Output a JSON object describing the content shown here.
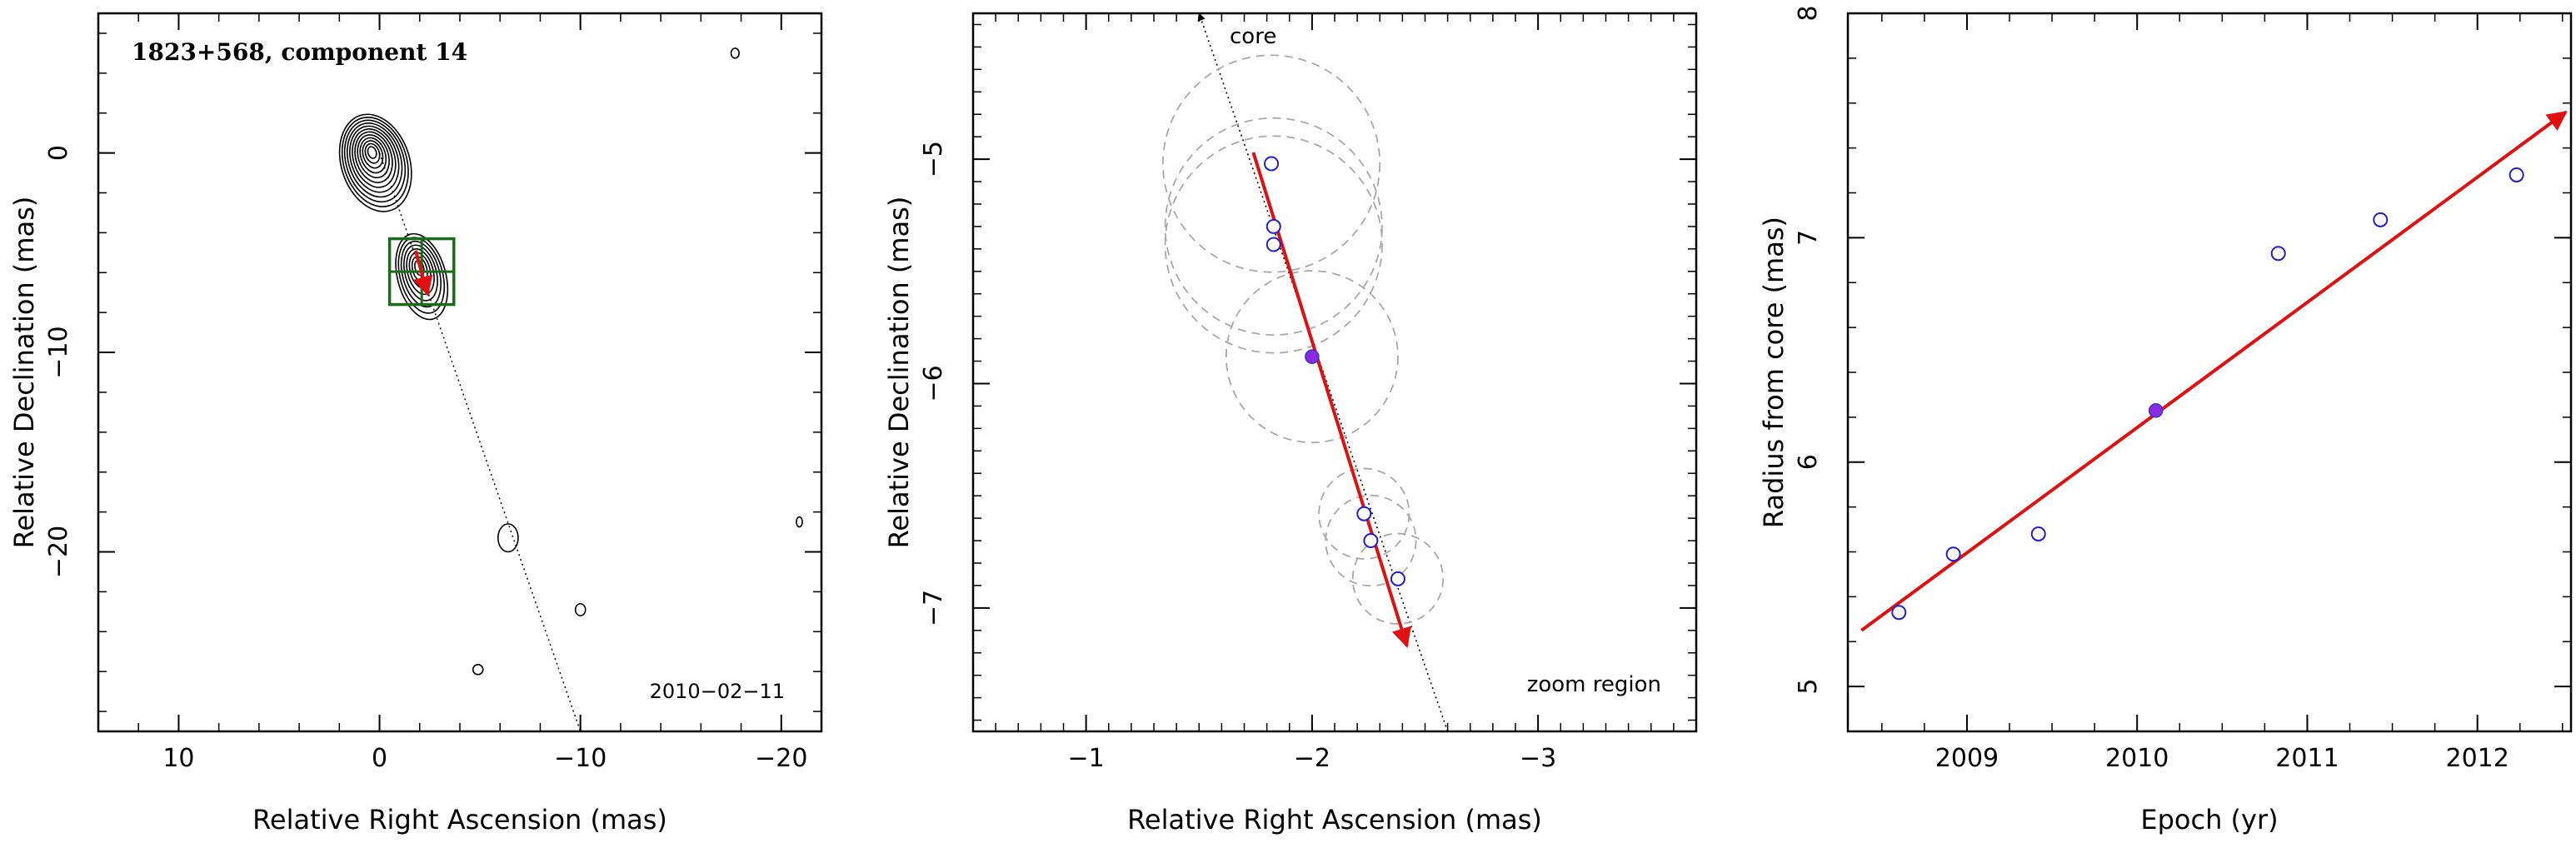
{
  "chart_data": [
    {
      "type": "contour",
      "title": "1823+568, component 14",
      "annotation": "2010−02−11",
      "xlabel": "Relative Right Ascension (mas)",
      "ylabel": "Relative Declination (mas)",
      "xlim": [
        14,
        -22
      ],
      "ylim": [
        -29,
        7
      ],
      "xticks": [
        10,
        0,
        -10,
        -20
      ],
      "yticks": [
        0,
        -10,
        -20
      ],
      "jet_axis": {
        "from": [
          0,
          0
        ],
        "to": [
          -10,
          -29
        ]
      },
      "contour_blobs": [
        {
          "label": "core",
          "x": 0.2,
          "y": -0.5,
          "rx": 1.7,
          "ry": 2.5,
          "levels": 12
        },
        {
          "label": "component",
          "x": -2.1,
          "y": -6.2,
          "rx": 1.2,
          "ry": 2.2,
          "levels": 8
        },
        {
          "label": "knot",
          "x": -6.4,
          "y": -19.3,
          "rx": 0.5,
          "ry": 0.7,
          "levels": 1
        },
        {
          "label": "knot",
          "x": -10,
          "y": -22.9,
          "rx": 0.25,
          "ry": 0.3,
          "levels": 1
        },
        {
          "label": "knot",
          "x": -4.9,
          "y": -25.9,
          "rx": 0.25,
          "ry": 0.25,
          "levels": 1
        },
        {
          "label": "knot",
          "x": -17.7,
          "y": 5,
          "rx": 0.2,
          "ry": 0.25,
          "levels": 1
        },
        {
          "label": "knot",
          "x": -20.9,
          "y": -18.5,
          "rx": 0.15,
          "ry": 0.25,
          "levels": 1
        }
      ],
      "zoom_box": {
        "x0": -0.5,
        "x1": -3.7,
        "y0": -4.3,
        "y1": -7.6
      },
      "vector": {
        "from": [
          -1.8,
          -4.9
        ],
        "to": [
          -2.4,
          -7.1
        ]
      },
      "color": "#1a6b1a"
    },
    {
      "type": "scatter",
      "annotation_core": "core",
      "annotation_zoom": "zoom region",
      "xlabel": "Relative Right Ascension (mas)",
      "ylabel": "Relative Declination (mas)",
      "xlim": [
        -0.5,
        -3.7
      ],
      "ylim": [
        -7.55,
        -4.35
      ],
      "xticks": [
        -1,
        -2,
        -3
      ],
      "yticks": [
        -5,
        -6,
        -7
      ],
      "points": [
        {
          "x": -1.82,
          "y": -5.02,
          "r": 0.48
        },
        {
          "x": -1.83,
          "y": -5.3,
          "r": 0.48
        },
        {
          "x": -1.83,
          "y": -5.38,
          "r": 0.48
        },
        {
          "x": -2.0,
          "y": -5.88,
          "r": 0.38,
          "reference": true
        },
        {
          "x": -2.23,
          "y": -6.58,
          "r": 0.2
        },
        {
          "x": -2.26,
          "y": -6.7,
          "r": 0.2
        },
        {
          "x": -2.38,
          "y": -6.87,
          "r": 0.2
        }
      ],
      "vector": {
        "from": [
          -1.74,
          -4.97
        ],
        "to": [
          -2.42,
          -7.17
        ]
      },
      "core_axis": {
        "from": [
          -2.6,
          -7.55
        ],
        "to": [
          -1.5,
          -4.35
        ]
      },
      "point_color": "#1f1fd0",
      "reference_color": "#8a2be2",
      "vector_color": "#e01010",
      "circle_color": "#a8a8a8"
    },
    {
      "type": "scatter",
      "xlabel": "Epoch (yr)",
      "ylabel": "Radius from core (mas)",
      "xlim": [
        2008.3,
        2012.55
      ],
      "ylim": [
        4.8,
        8.0
      ],
      "xticks": [
        2009,
        2010,
        2011,
        2012
      ],
      "yticks": [
        5,
        6,
        7,
        8
      ],
      "points": [
        {
          "x": 2008.6,
          "y": 5.33
        },
        {
          "x": 2008.92,
          "y": 5.59
        },
        {
          "x": 2009.42,
          "y": 5.68
        },
        {
          "x": 2010.11,
          "y": 6.23,
          "reference": true
        },
        {
          "x": 2010.83,
          "y": 6.93
        },
        {
          "x": 2011.43,
          "y": 7.08
        },
        {
          "x": 2012.23,
          "y": 7.28
        }
      ],
      "fit_line": {
        "from": [
          2008.38,
          5.25
        ],
        "to": [
          2012.52,
          7.56
        ]
      },
      "point_color": "#1f1fd0",
      "reference_color": "#8a2be2",
      "line_color": "#e01010"
    }
  ]
}
